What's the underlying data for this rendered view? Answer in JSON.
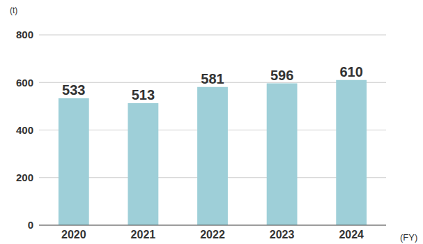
{
  "chart_data": {
    "type": "bar",
    "y_label": "(t)",
    "x_label": "(FY)",
    "categories": [
      "2020",
      "2021",
      "2022",
      "2023",
      "2024"
    ],
    "values": [
      533,
      513,
      581,
      596,
      610
    ],
    "color": "#9ecfd8",
    "ylim": [
      0,
      800
    ],
    "yticks": [
      0,
      200,
      400,
      600,
      800
    ],
    "grid": true,
    "data_labels": true
  }
}
